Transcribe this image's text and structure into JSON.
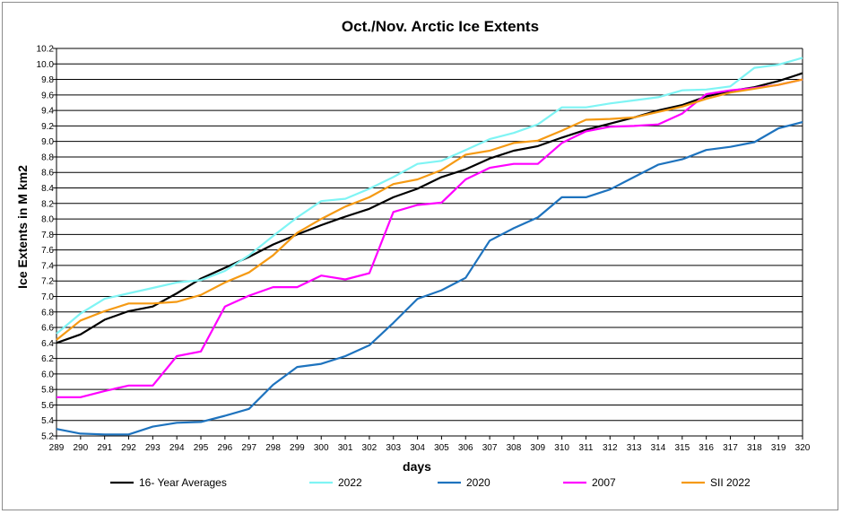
{
  "chart_data": {
    "type": "line",
    "title": "Oct./Nov. Arctic Ice Extents",
    "xlabel": "days",
    "ylabel": "Ice Extents in M km2",
    "xlim": [
      289,
      320
    ],
    "ylim": [
      5.2,
      10.2
    ],
    "y_ticks": [
      "5.2",
      "5.4",
      "5.6",
      "5.8",
      "6.0",
      "6.2",
      "6.4",
      "6.6",
      "6.8",
      "7.0",
      "7.2",
      "7.4",
      "7.6",
      "7.8",
      "8.0",
      "8.2",
      "8.4",
      "8.6",
      "8.8",
      "9.0",
      "9.2",
      "9.4",
      "9.6",
      "9.8",
      "10.0",
      "10.2"
    ],
    "x": [
      289,
      290,
      291,
      292,
      293,
      294,
      295,
      296,
      297,
      298,
      299,
      300,
      301,
      302,
      303,
      304,
      305,
      306,
      307,
      308,
      309,
      310,
      311,
      312,
      313,
      314,
      315,
      316,
      317,
      318,
      319,
      320
    ],
    "grid": "horizontal",
    "legend_position": "bottom",
    "series": [
      {
        "name": "16- Year Averages",
        "color": "#000000",
        "values": [
          6.4,
          6.51,
          6.7,
          6.81,
          6.87,
          7.04,
          7.23,
          7.37,
          7.51,
          7.67,
          7.8,
          7.92,
          8.03,
          8.13,
          8.28,
          8.39,
          8.54,
          8.64,
          8.78,
          8.88,
          8.94,
          9.05,
          9.15,
          9.23,
          9.31,
          9.4,
          9.47,
          9.58,
          9.65,
          9.7,
          9.78,
          9.88
        ]
      },
      {
        "name": "2022",
        "color": "#7ff4f4",
        "values": [
          6.52,
          6.78,
          6.97,
          7.04,
          7.11,
          7.18,
          7.21,
          7.33,
          7.53,
          7.78,
          8.02,
          8.23,
          8.26,
          8.39,
          8.54,
          8.71,
          8.75,
          8.89,
          9.03,
          9.11,
          9.22,
          9.44,
          9.44,
          9.49,
          9.53,
          9.57,
          9.66,
          9.67,
          9.71,
          9.95,
          9.99,
          10.08
        ]
      },
      {
        "name": "2020",
        "color": "#1e73be",
        "values": [
          5.29,
          5.23,
          5.22,
          5.22,
          5.32,
          5.37,
          5.38,
          5.46,
          5.55,
          5.86,
          6.09,
          6.13,
          6.23,
          6.37,
          6.66,
          6.97,
          7.08,
          7.24,
          7.72,
          7.88,
          8.02,
          8.28,
          8.28,
          8.38,
          8.54,
          8.7,
          8.77,
          8.89,
          8.93,
          8.99,
          9.17,
          9.25
        ]
      },
      {
        "name": "2007",
        "color": "#ff00ff",
        "values": [
          5.7,
          5.7,
          5.78,
          5.85,
          5.85,
          6.23,
          6.29,
          6.87,
          7.01,
          7.12,
          7.12,
          7.27,
          7.22,
          7.3,
          8.09,
          8.18,
          8.21,
          8.51,
          8.66,
          8.71,
          8.71,
          8.98,
          9.13,
          9.19,
          9.2,
          9.22,
          9.36,
          9.61,
          9.66,
          9.69,
          9.73,
          9.8
        ]
      },
      {
        "name": "SII 2022",
        "color": "#f59a14",
        "values": [
          6.44,
          6.69,
          6.81,
          6.91,
          6.91,
          6.93,
          7.02,
          7.18,
          7.31,
          7.53,
          7.82,
          8.0,
          8.16,
          8.28,
          8.45,
          8.51,
          8.63,
          8.83,
          8.88,
          8.98,
          9.01,
          9.14,
          9.28,
          9.29,
          9.31,
          9.38,
          9.45,
          9.55,
          9.63,
          9.68,
          9.73,
          9.8
        ]
      }
    ]
  }
}
